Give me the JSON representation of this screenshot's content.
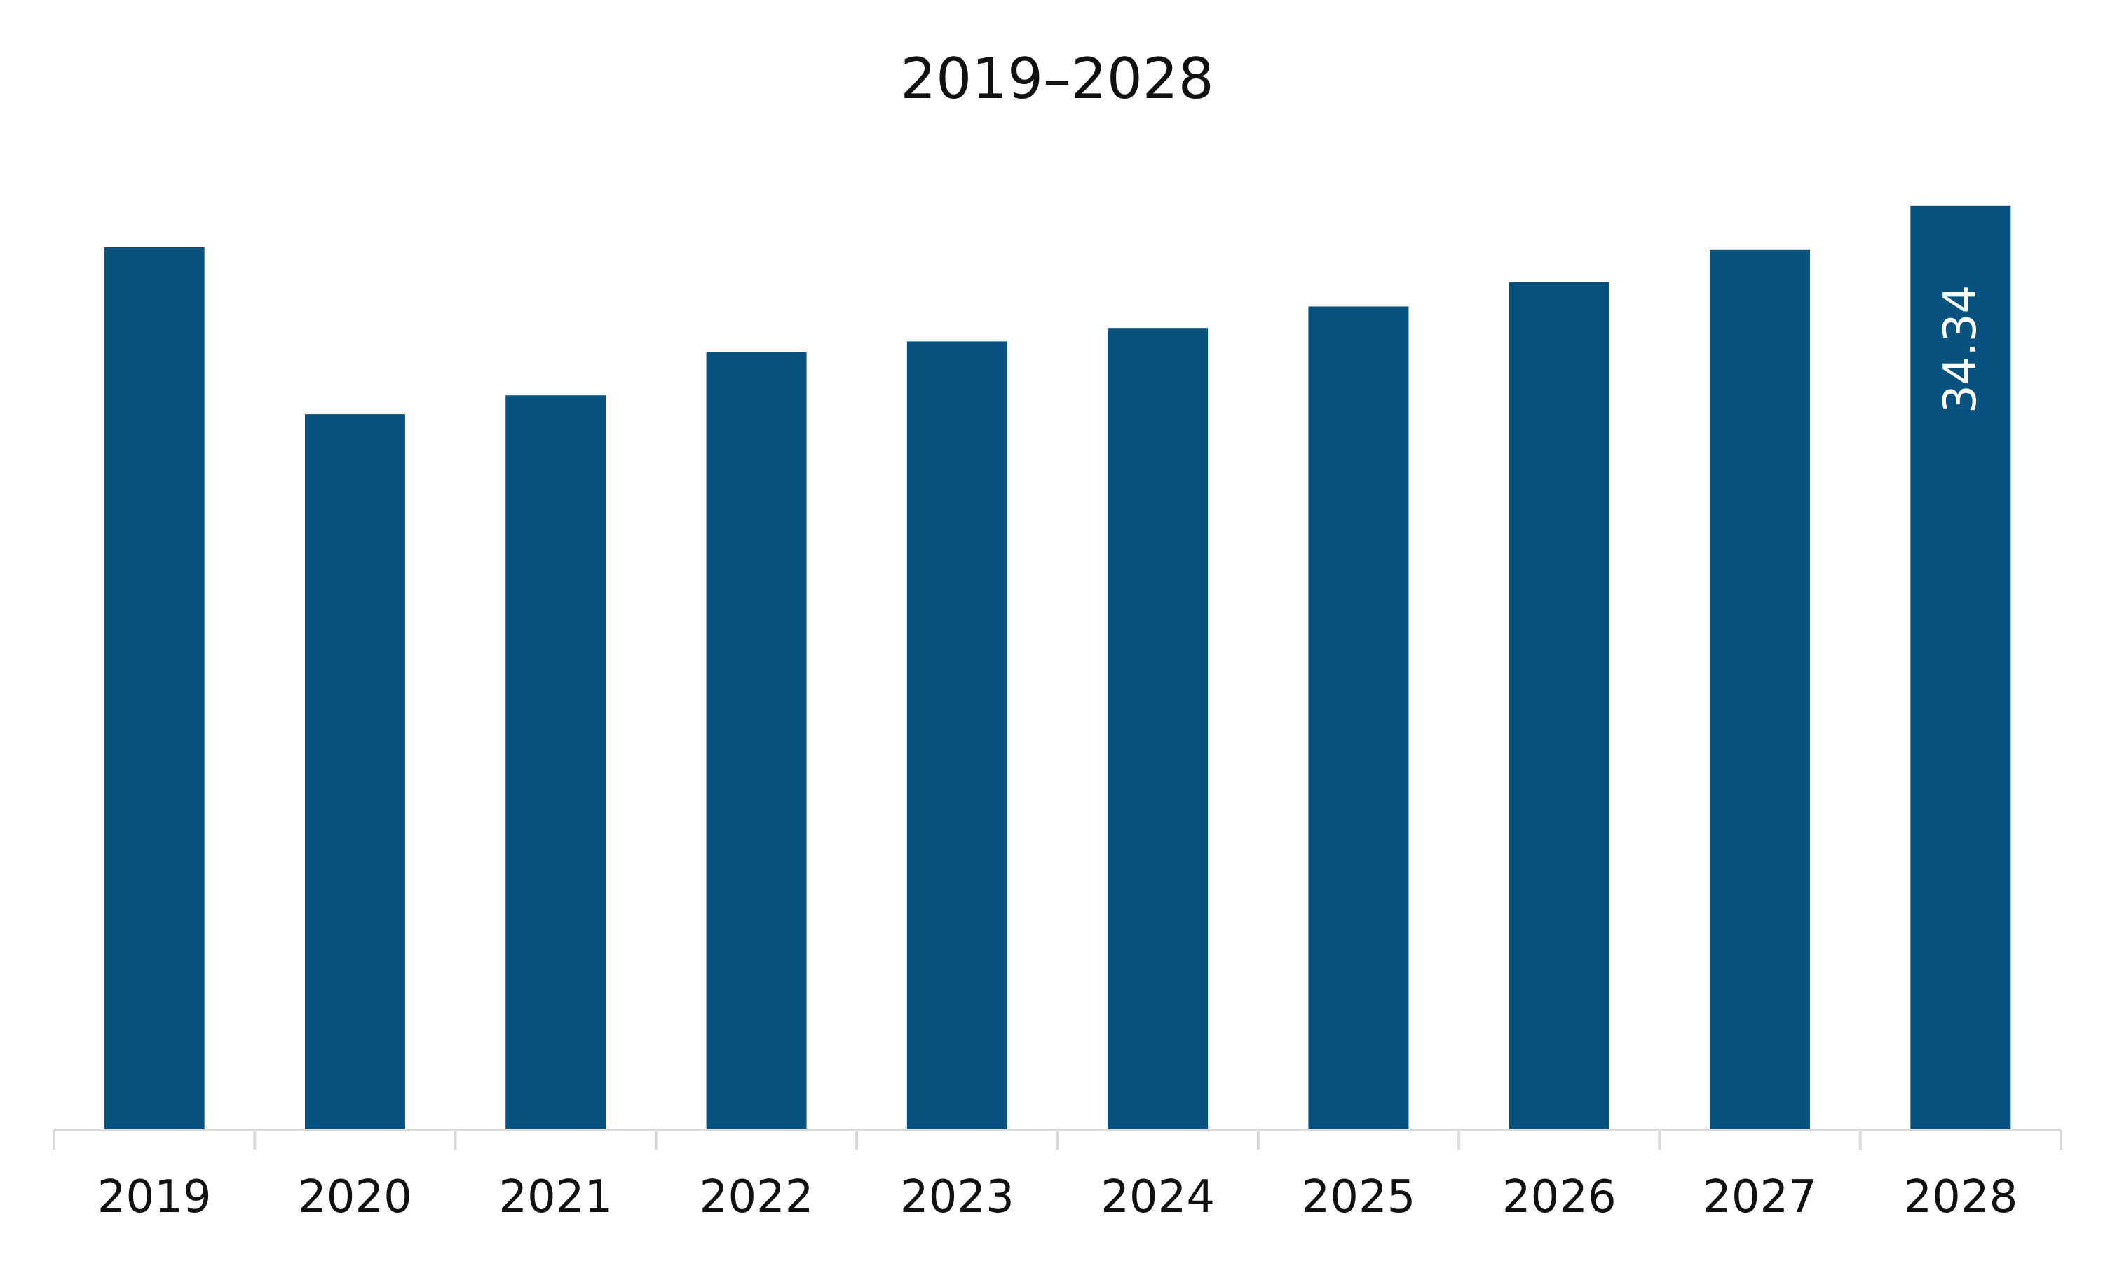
{
  "chart_data": {
    "type": "bar",
    "title": "2019–2028",
    "categories": [
      "2019",
      "2020",
      "2021",
      "2022",
      "2023",
      "2024",
      "2025",
      "2026",
      "2027",
      "2028"
    ],
    "values": [
      32.8,
      26.6,
      27.3,
      28.9,
      29.3,
      29.8,
      30.6,
      31.5,
      32.7,
      34.34
    ],
    "data_labels": [
      "",
      "",
      "",
      "",
      "",
      "",
      "",
      "",
      "",
      "34.34"
    ],
    "xlabel": "",
    "ylabel": "",
    "ylim": [
      0,
      36
    ],
    "grid": false,
    "legend": "none",
    "colors": {
      "bar": "#07527F",
      "axis": "#D9D9D9",
      "text": "#111111",
      "data_label": "#FFFFFF"
    }
  }
}
